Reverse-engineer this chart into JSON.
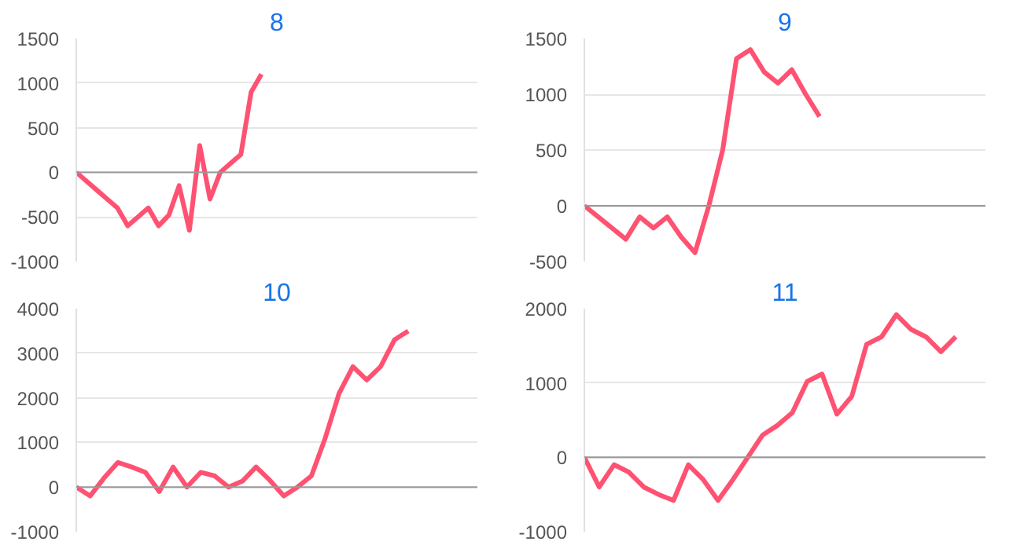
{
  "chart_data": [
    {
      "type": "line",
      "title": "8",
      "categories": [
        null,
        null,
        null,
        null,
        null,
        null,
        null,
        null,
        null,
        null,
        null,
        null,
        null,
        null,
        null,
        null,
        null,
        null,
        null,
        null,
        null,
        null,
        null,
        null,
        null,
        null,
        null,
        null,
        null,
        null,
        null,
        null,
        null,
        null,
        null,
        null,
        null,
        null,
        null,
        null
      ],
      "series": [
        {
          "color": "#ff5272",
          "values": [
            0,
            -100,
            -200,
            -300,
            -400,
            -600,
            -500,
            -400,
            -600,
            -480,
            -150,
            -650,
            300,
            -300,
            0,
            100,
            200,
            900,
            1100,
            null,
            null,
            null,
            null,
            null,
            null,
            null,
            null,
            null,
            null,
            null,
            null,
            null,
            null,
            null,
            null,
            null,
            null,
            null,
            null,
            null
          ]
        }
      ],
      "ylim": [
        -1000,
        1500
      ],
      "yticks": [
        -1000,
        -500,
        0,
        500,
        1000,
        1500
      ],
      "grid": "y",
      "tick_labels": "y",
      "marker": "none",
      "line_style": "solid",
      "ref_lines": [
        {
          "axis": "y",
          "value": 0,
          "color": "#999999"
        }
      ]
    },
    {
      "type": "line",
      "title": "9",
      "categories": [
        null,
        null,
        null,
        null,
        null,
        null,
        null,
        null,
        null,
        null,
        null,
        null,
        null,
        null,
        null,
        null,
        null,
        null,
        null,
        null,
        null,
        null,
        null,
        null,
        null,
        null,
        null,
        null,
        null,
        null
      ],
      "series": [
        {
          "color": "#ff5272",
          "values": [
            0,
            -100,
            -200,
            -300,
            -100,
            -200,
            -100,
            -280,
            -420,
            0,
            500,
            1320,
            1400,
            1200,
            1100,
            1220,
            1000,
            800,
            null,
            null,
            null,
            null,
            null,
            null,
            null,
            null,
            null,
            null,
            null,
            null
          ]
        }
      ],
      "ylim": [
        -500,
        1500
      ],
      "yticks": [
        -500,
        0,
        500,
        1000,
        1500
      ],
      "grid": "y",
      "tick_labels": "y",
      "marker": "none",
      "line_style": "solid",
      "ref_lines": [
        {
          "axis": "y",
          "value": 0,
          "color": "#999999"
        }
      ]
    },
    {
      "type": "line",
      "title": "10",
      "categories": [
        null,
        null,
        null,
        null,
        null,
        null,
        null,
        null,
        null,
        null,
        null,
        null,
        null,
        null,
        null,
        null,
        null,
        null,
        null,
        null,
        null,
        null,
        null,
        null,
        null,
        null,
        null,
        null,
        null,
        null
      ],
      "series": [
        {
          "color": "#ff5272",
          "values": [
            0,
            -200,
            200,
            550,
            450,
            330,
            -100,
            450,
            0,
            330,
            250,
            0,
            130,
            450,
            150,
            -200,
            0,
            250,
            1100,
            2100,
            2700,
            2400,
            2700,
            3300,
            3500,
            null,
            null,
            null,
            null,
            null
          ]
        }
      ],
      "ylim": [
        -1000,
        4000
      ],
      "yticks": [
        -1000,
        0,
        1000,
        2000,
        3000,
        4000
      ],
      "grid": "y",
      "tick_labels": "y",
      "marker": "none",
      "line_style": "solid",
      "ref_lines": [
        {
          "axis": "y",
          "value": 0,
          "color": "#999999"
        }
      ]
    },
    {
      "type": "line",
      "title": "11",
      "categories": [
        null,
        null,
        null,
        null,
        null,
        null,
        null,
        null,
        null,
        null,
        null,
        null,
        null,
        null,
        null,
        null,
        null,
        null,
        null,
        null,
        null,
        null,
        null,
        null,
        null,
        null,
        null,
        null
      ],
      "series": [
        {
          "color": "#ff5272",
          "values": [
            0,
            -400,
            -100,
            -200,
            -400,
            -500,
            -580,
            -100,
            -300,
            -580,
            -300,
            0,
            300,
            430,
            600,
            1020,
            1120,
            580,
            820,
            1520,
            1620,
            1920,
            1720,
            1620,
            1420,
            1620,
            null,
            null
          ]
        }
      ],
      "ylim": [
        -1000,
        2000
      ],
      "yticks": [
        -1000,
        0,
        1000,
        2000
      ],
      "grid": "y",
      "tick_labels": "y",
      "marker": "none",
      "line_style": "solid",
      "ref_lines": [
        {
          "axis": "y",
          "value": 0,
          "color": "#999999"
        }
      ]
    }
  ]
}
